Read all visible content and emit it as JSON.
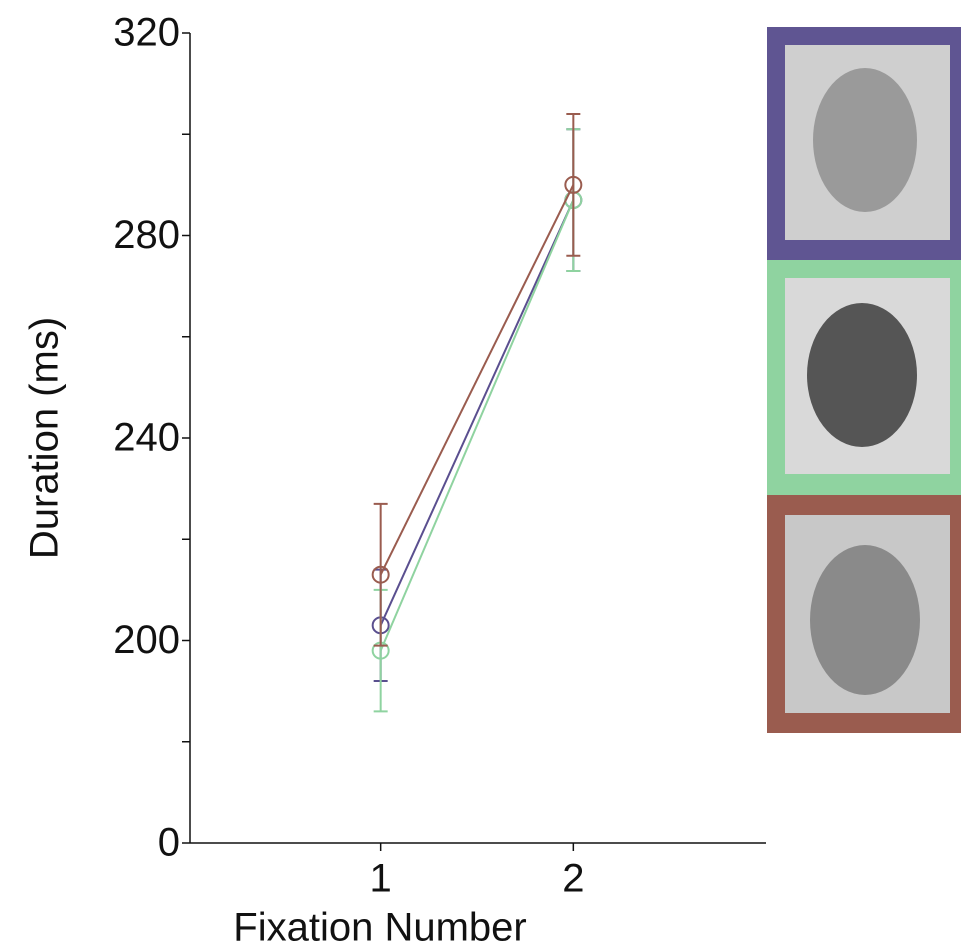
{
  "chart_data": {
    "type": "line",
    "x_label": "Fixation Number",
    "y_label": "Duration (ms)",
    "x": [
      1,
      2
    ],
    "xlim": [
      0,
      3
    ],
    "xticks": [
      1,
      2
    ],
    "ylim": [
      160,
      320
    ],
    "yticks": [
      {
        "value": 160,
        "label": "0"
      },
      200,
      240,
      280,
      320
    ],
    "minor_yticks": [
      180,
      220,
      260,
      300
    ],
    "series": [
      {
        "name": "purple",
        "color": "#5a4f8f",
        "values": [
          203,
          287
        ],
        "errors": [
          11,
          14
        ]
      },
      {
        "name": "green",
        "color": "#8fd3a0",
        "values": [
          198,
          287
        ],
        "errors": [
          12,
          14
        ]
      },
      {
        "name": "brown",
        "color": "#9a5c4f",
        "values": [
          213,
          290
        ],
        "errors": [
          14,
          14
        ]
      }
    ]
  }
}
